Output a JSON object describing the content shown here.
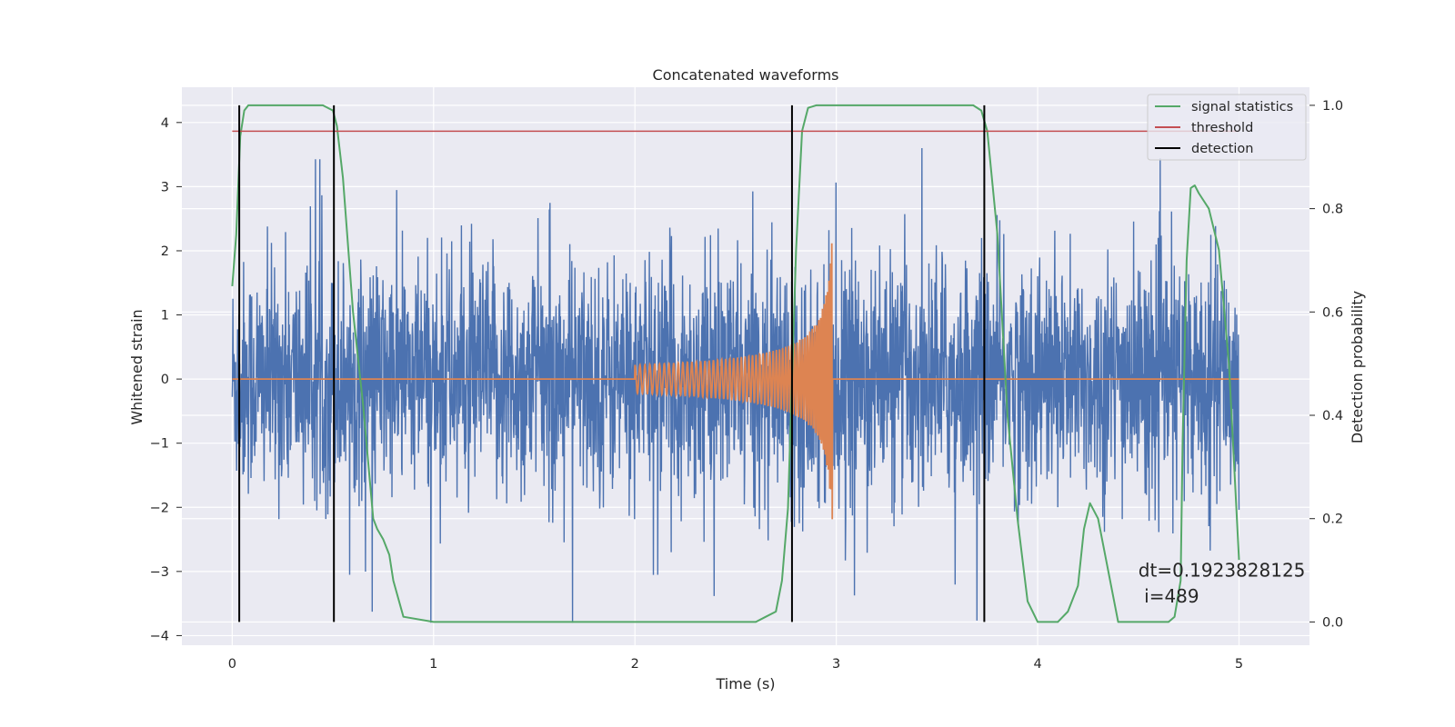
{
  "chart_data": {
    "type": "line",
    "title": "Concatenated waveforms",
    "xlabel": "Time (s)",
    "ylabel": "Whitened strain",
    "y2label": "Detection probability",
    "xlim": [
      -0.25,
      5.35
    ],
    "ylim": [
      -4.15,
      4.55
    ],
    "y2lim": [
      -0.045,
      1.035
    ],
    "xticks": [
      0,
      1,
      2,
      3,
      4,
      5
    ],
    "xtick_labels": [
      "0",
      "1",
      "2",
      "3",
      "4",
      "5"
    ],
    "yticks": [
      -4,
      -3,
      -2,
      -1,
      0,
      1,
      2,
      3,
      4
    ],
    "ytick_labels": [
      "−4",
      "−3",
      "−2",
      "−1",
      "0",
      "1",
      "2",
      "3",
      "4"
    ],
    "y2ticks": [
      0.0,
      0.2,
      0.4,
      0.6,
      0.8,
      1.0
    ],
    "y2tick_labels": [
      "0.0",
      "0.2",
      "0.4",
      "0.6",
      "0.8",
      "1.0"
    ],
    "grid": true,
    "legend_position": "top-right",
    "colors": {
      "strain": "#4c72b0",
      "template": "#dd8452",
      "signal_statistics": "#55a868",
      "threshold": "#c44e52",
      "detection": "#000000",
      "axes_bg": "#eaeaf2",
      "grid": "#ffffff"
    },
    "series": [
      {
        "name": "signal statistics",
        "axis": "right",
        "x": [
          0.0,
          0.02,
          0.04,
          0.06,
          0.08,
          0.1,
          0.15,
          0.2,
          0.3,
          0.4,
          0.45,
          0.5,
          0.52,
          0.55,
          0.6,
          0.65,
          0.7,
          0.72,
          0.75,
          0.78,
          0.8,
          0.85,
          1.0,
          2.0,
          2.5,
          2.6,
          2.65,
          2.7,
          2.73,
          2.76,
          2.8,
          2.83,
          2.86,
          2.9,
          3.0,
          3.5,
          3.6,
          3.68,
          3.72,
          3.75,
          3.8,
          3.85,
          3.9,
          3.95,
          4.0,
          4.1,
          4.15,
          4.2,
          4.23,
          4.26,
          4.3,
          4.4,
          4.45,
          4.5,
          4.6,
          4.65,
          4.68,
          4.71,
          4.72,
          4.74,
          4.76,
          4.78,
          4.8,
          4.85,
          4.9,
          4.95,
          5.0
        ],
        "y": [
          0.65,
          0.75,
          0.94,
          0.99,
          1.0,
          1.0,
          1.0,
          1.0,
          1.0,
          1.0,
          1.0,
          0.99,
          0.96,
          0.86,
          0.6,
          0.42,
          0.2,
          0.18,
          0.16,
          0.13,
          0.08,
          0.01,
          0.0,
          0.0,
          0.0,
          0.0,
          0.01,
          0.02,
          0.08,
          0.22,
          0.72,
          0.95,
          0.995,
          1.0,
          1.0,
          1.0,
          1.0,
          1.0,
          0.99,
          0.95,
          0.75,
          0.4,
          0.2,
          0.04,
          0.0,
          0.0,
          0.02,
          0.07,
          0.18,
          0.23,
          0.2,
          0.0,
          0.0,
          0.0,
          0.0,
          0.0,
          0.01,
          0.08,
          0.35,
          0.7,
          0.84,
          0.845,
          0.83,
          0.8,
          0.72,
          0.5,
          0.12
        ]
      },
      {
        "name": "threshold",
        "axis": "right",
        "x": [
          0.0,
          5.0
        ],
        "y": [
          0.95,
          0.95
        ]
      },
      {
        "name": "detection",
        "axis": "right",
        "times": [
          0.035,
          0.505,
          2.78,
          3.735
        ]
      }
    ],
    "annotations": [
      {
        "text": "dt=0.1923828125",
        "x": 4.5,
        "y2": 0.1
      },
      {
        "text": " i=489",
        "x": 4.5,
        "y2": 0.05
      }
    ]
  }
}
